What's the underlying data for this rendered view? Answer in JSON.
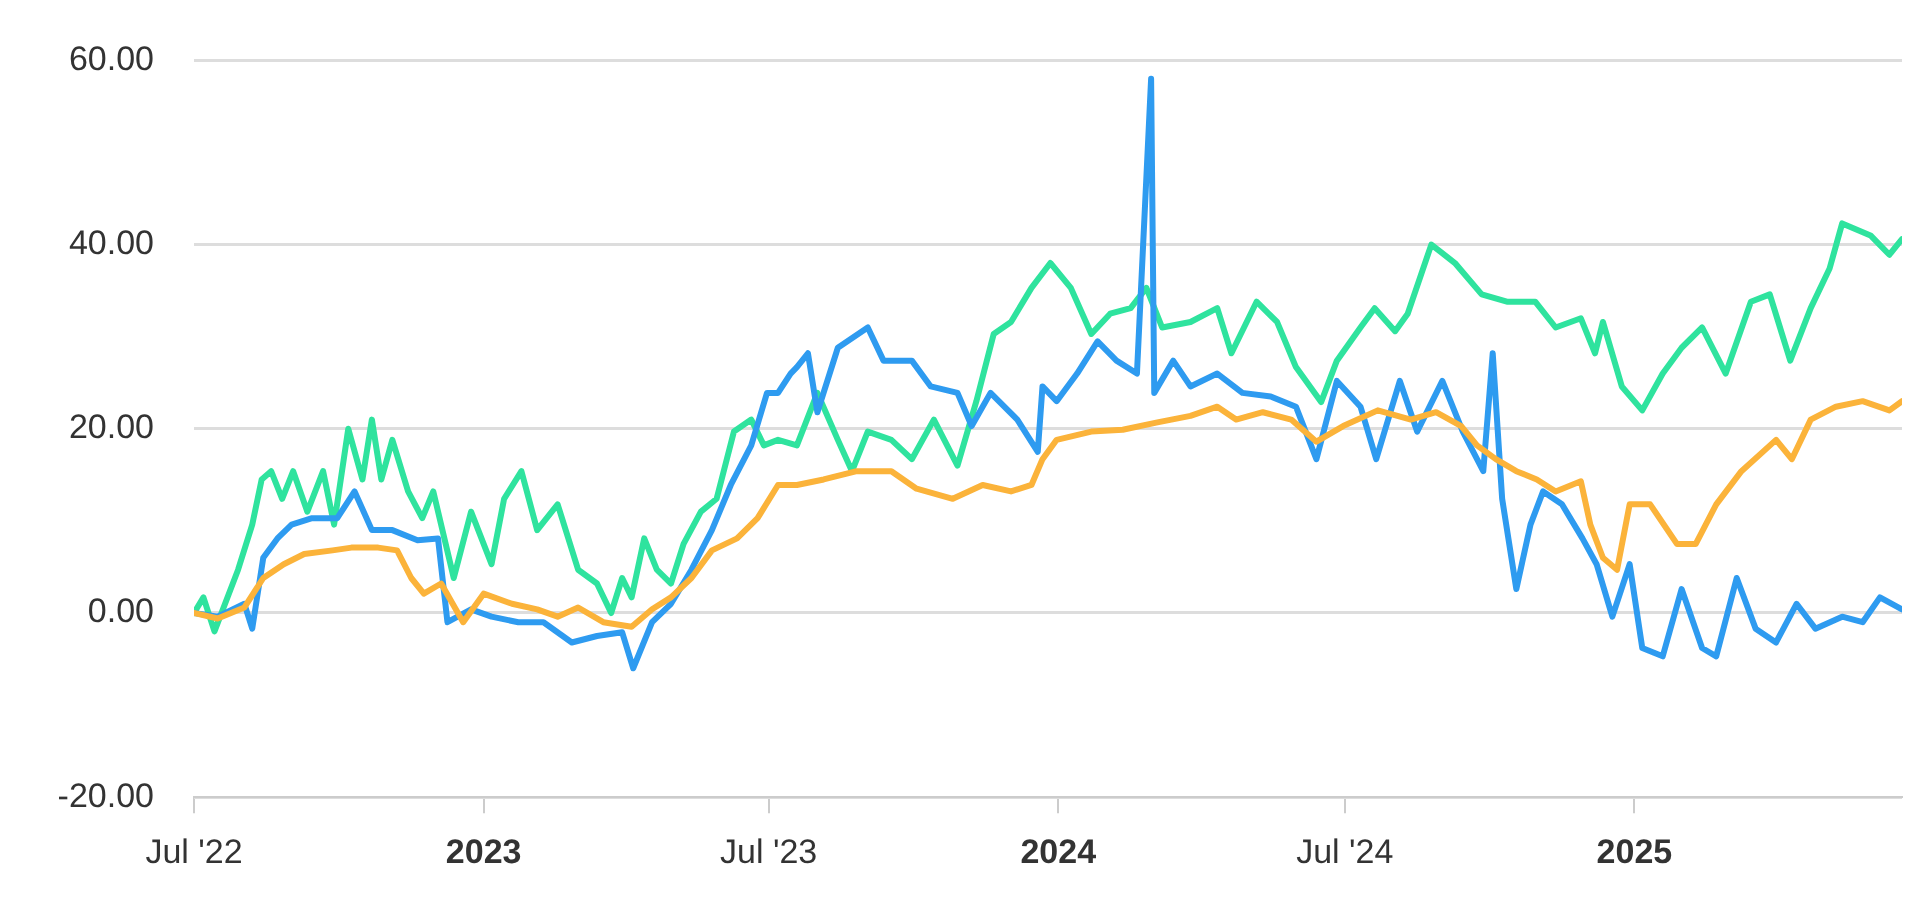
{
  "chart_data": {
    "type": "line",
    "xlim": [
      "2022-07-01",
      "2025-06-20"
    ],
    "ylim": [
      -20,
      60
    ],
    "yticks": [
      {
        "value": -20,
        "label": "-20.00"
      },
      {
        "value": 0,
        "label": "0.00"
      },
      {
        "value": 20,
        "label": "20.00"
      },
      {
        "value": 40,
        "label": "40.00"
      },
      {
        "value": 60,
        "label": "60.00"
      }
    ],
    "xticks": [
      {
        "value": "2022-07-01",
        "label": "Jul '22"
      },
      {
        "value": "2023-01-01",
        "label": "2023"
      },
      {
        "value": "2023-07-01",
        "label": "Jul '23"
      },
      {
        "value": "2024-01-01",
        "label": "2024"
      },
      {
        "value": "2024-07-01",
        "label": "Jul '24"
      },
      {
        "value": "2025-01-01",
        "label": "2025"
      }
    ],
    "grid": "y",
    "legend": false,
    "marker": "none",
    "line_style": "solid",
    "series": [
      {
        "color": "#fbb33a",
        "x": [
          "2022-07-01",
          "2022-07-16",
          "2022-08-02",
          "2022-08-14",
          "2022-08-27",
          "2022-09-09",
          "2022-09-27",
          "2022-10-09",
          "2022-10-26",
          "2022-11-07",
          "2022-11-16",
          "2022-11-24",
          "2022-12-05",
          "2022-12-19",
          "2023-01-01",
          "2023-01-19",
          "2023-02-04",
          "2023-02-17",
          "2023-03-02",
          "2023-03-18",
          "2023-04-05",
          "2023-04-18",
          "2023-04-30",
          "2023-05-13",
          "2023-05-26",
          "2023-06-11",
          "2023-06-24",
          "2023-07-07",
          "2023-07-19",
          "2023-08-05",
          "2023-08-26",
          "2023-09-17",
          "2023-10-03",
          "2023-10-26",
          "2023-11-14",
          "2023-12-02",
          "2023-12-15",
          "2023-12-22",
          "2023-12-31",
          "2024-01-22",
          "2024-02-11",
          "2024-03-04",
          "2024-03-25",
          "2024-04-11",
          "2024-04-23",
          "2024-05-10",
          "2024-05-28",
          "2024-06-13",
          "2024-06-30",
          "2024-07-22",
          "2024-08-12",
          "2024-08-28",
          "2024-09-13",
          "2024-09-23",
          "2024-10-05",
          "2024-10-18",
          "2024-10-31",
          "2024-11-12",
          "2024-11-28",
          "2024-12-04",
          "2024-12-12",
          "2024-12-21",
          "2024-12-29",
          "2025-01-11",
          "2025-01-28",
          "2025-02-09",
          "2025-02-22",
          "2025-03-10",
          "2025-04-01",
          "2025-04-11",
          "2025-04-23",
          "2025-05-09",
          "2025-05-26",
          "2025-06-12",
          "2025-06-20"
        ],
        "values": [
          0,
          -0.6,
          0.6,
          3.8,
          5.3,
          6.4,
          6.8,
          7.1,
          7.1,
          6.8,
          3.8,
          2.1,
          3.2,
          -1,
          2.1,
          1,
          0.4,
          -0.4,
          0.6,
          -1,
          -1.5,
          0.4,
          1.7,
          3.8,
          6.8,
          8.1,
          10.3,
          13.9,
          13.9,
          14.5,
          15.4,
          15.4,
          13.5,
          12.4,
          13.9,
          13.2,
          13.9,
          16.7,
          18.8,
          19.7,
          19.9,
          20.7,
          21.4,
          22.4,
          21,
          21.8,
          21,
          18.6,
          20.3,
          22,
          21,
          21.8,
          20.3,
          18.2,
          16.7,
          15.4,
          14.5,
          13.2,
          14.3,
          9.6,
          6,
          4.7,
          11.8,
          11.8,
          7.5,
          7.5,
          11.8,
          15.4,
          18.8,
          16.7,
          21,
          22.4,
          23,
          22,
          23
        ]
      },
      {
        "color": "#2e9bf0",
        "x": [
          "2022-07-01",
          "2022-07-16",
          "2022-08-02",
          "2022-08-07",
          "2022-08-14",
          "2022-08-23",
          "2022-09-01",
          "2022-09-14",
          "2022-09-30",
          "2022-10-11",
          "2022-10-22",
          "2022-11-04",
          "2022-11-20",
          "2022-12-03",
          "2022-12-09",
          "2022-12-24",
          "2023-01-06",
          "2023-01-23",
          "2023-02-08",
          "2023-02-26",
          "2023-03-14",
          "2023-03-30",
          "2023-04-06",
          "2023-04-18",
          "2023-04-30",
          "2023-05-13",
          "2023-05-26",
          "2023-06-07",
          "2023-06-20",
          "2023-06-30",
          "2023-07-07",
          "2023-07-15",
          "2023-07-19",
          "2023-07-26",
          "2023-08-01",
          "2023-08-14",
          "2023-09-02",
          "2023-09-12",
          "2023-09-30",
          "2023-10-12",
          "2023-10-29",
          "2023-11-07",
          "2023-11-19",
          "2023-12-06",
          "2023-12-19",
          "2023-12-22",
          "2023-12-31",
          "2024-01-13",
          "2024-01-26",
          "2024-02-07",
          "2024-02-20",
          "2024-02-29",
          "2024-03-02",
          "2024-03-14",
          "2024-03-25",
          "2024-04-11",
          "2024-04-27",
          "2024-05-15",
          "2024-05-31",
          "2024-06-13",
          "2024-06-26",
          "2024-07-11",
          "2024-07-21",
          "2024-08-05",
          "2024-08-16",
          "2024-09-01",
          "2024-09-14",
          "2024-09-27",
          "2024-10-03",
          "2024-10-09",
          "2024-10-18",
          "2024-10-27",
          "2024-11-04",
          "2024-11-16",
          "2024-11-29",
          "2024-12-08",
          "2024-12-18",
          "2024-12-29",
          "2025-01-06",
          "2025-01-19",
          "2025-01-31",
          "2025-02-13",
          "2025-02-22",
          "2025-03-07",
          "2025-03-19",
          "2025-04-01",
          "2025-04-14",
          "2025-04-26",
          "2025-05-13",
          "2025-05-26",
          "2025-06-06",
          "2025-06-20"
        ],
        "values": [
          0,
          -0.4,
          1,
          -1.7,
          6,
          8.1,
          9.6,
          10.3,
          10.3,
          13.2,
          9,
          9,
          7.9,
          8.1,
          -1,
          0.4,
          -0.4,
          -1,
          -1,
          -3.2,
          -2.5,
          -2.1,
          -6,
          -1,
          1,
          4.7,
          9,
          13.9,
          18.2,
          23.9,
          23.9,
          26,
          26.7,
          28.2,
          21.8,
          28.8,
          31,
          27.4,
          27.4,
          24.6,
          23.9,
          20.3,
          23.9,
          21,
          17.5,
          24.6,
          23,
          26,
          29.5,
          27.4,
          26,
          58,
          23.9,
          27.4,
          24.6,
          26,
          23.9,
          23.5,
          22.4,
          16.7,
          25.2,
          22.4,
          16.7,
          25.2,
          19.7,
          25.2,
          19.7,
          15.4,
          28.2,
          12.4,
          2.6,
          9.6,
          13.2,
          11.8,
          8.1,
          5.3,
          -0.4,
          5.3,
          -3.8,
          -4.7,
          2.6,
          -3.8,
          -4.7,
          3.8,
          -1.7,
          -3.2,
          1,
          -1.7,
          -0.4,
          -1,
          1.7,
          0.4
        ]
      },
      {
        "color": "#2fe39e",
        "x": [
          "2022-07-01",
          "2022-07-07",
          "2022-07-14",
          "2022-07-29",
          "2022-08-07",
          "2022-08-13",
          "2022-08-19",
          "2022-08-26",
          "2022-09-02",
          "2022-09-11",
          "2022-09-21",
          "2022-09-28",
          "2022-10-07",
          "2022-10-16",
          "2022-10-22",
          "2022-10-28",
          "2022-11-04",
          "2022-11-14",
          "2022-11-23",
          "2022-11-30",
          "2022-12-13",
          "2022-12-24",
          "2023-01-06",
          "2023-01-14",
          "2023-01-25",
          "2023-02-04",
          "2023-02-17",
          "2023-03-02",
          "2023-03-14",
          "2023-03-23",
          "2023-03-30",
          "2023-04-05",
          "2023-04-13",
          "2023-04-21",
          "2023-04-30",
          "2023-05-08",
          "2023-05-19",
          "2023-05-29",
          "2023-06-09",
          "2023-06-20",
          "2023-06-28",
          "2023-07-07",
          "2023-07-19",
          "2023-08-01",
          "2023-08-14",
          "2023-08-23",
          "2023-09-02",
          "2023-09-17",
          "2023-09-30",
          "2023-10-14",
          "2023-10-29",
          "2023-11-10",
          "2023-11-21",
          "2023-12-02",
          "2023-12-15",
          "2023-12-27",
          "2024-01-09",
          "2024-01-22",
          "2024-02-03",
          "2024-02-16",
          "2024-02-26",
          "2024-03-07",
          "2024-03-25",
          "2024-04-11",
          "2024-04-20",
          "2024-05-06",
          "2024-05-19",
          "2024-05-31",
          "2024-06-16",
          "2024-06-26",
          "2024-07-11",
          "2024-07-20",
          "2024-08-02",
          "2024-08-10",
          "2024-08-25",
          "2024-09-09",
          "2024-09-26",
          "2024-10-12",
          "2024-10-30",
          "2024-11-12",
          "2024-11-28",
          "2024-12-07",
          "2024-12-12",
          "2024-12-24",
          "2025-01-06",
          "2025-01-19",
          "2025-01-31",
          "2025-02-13",
          "2025-02-28",
          "2025-03-16",
          "2025-03-28",
          "2025-04-10",
          "2025-04-23",
          "2025-05-05",
          "2025-05-13",
          "2025-05-31",
          "2025-06-12",
          "2025-06-20"
        ],
        "values": [
          0,
          1.7,
          -2,
          4.7,
          9.6,
          14.5,
          15.4,
          12.4,
          15.4,
          11,
          15.4,
          9.6,
          20,
          14.5,
          21,
          14.5,
          18.8,
          13.2,
          10.3,
          13.2,
          3.8,
          11,
          5.3,
          12.4,
          15.4,
          9,
          11.8,
          4.7,
          3.2,
          0,
          3.8,
          1.7,
          8.1,
          4.7,
          3.2,
          7.5,
          11,
          12.4,
          19.7,
          21,
          18.2,
          18.8,
          18.2,
          23.9,
          18.8,
          15.4,
          19.7,
          18.8,
          16.7,
          21,
          16,
          23,
          30.3,
          31.6,
          35.3,
          38,
          35.3,
          30.3,
          32.5,
          33.1,
          35.3,
          31,
          31.6,
          33.1,
          28.2,
          33.8,
          31.6,
          26.7,
          22.9,
          27.4,
          31,
          33.1,
          30.6,
          32.5,
          40,
          38,
          34.6,
          33.8,
          33.8,
          31,
          32,
          28.2,
          31.6,
          24.6,
          22,
          26,
          28.8,
          31,
          26,
          33.8,
          34.6,
          27.4,
          33.1,
          37.4,
          42.3,
          41,
          38.9,
          40.6
        ]
      }
    ]
  }
}
